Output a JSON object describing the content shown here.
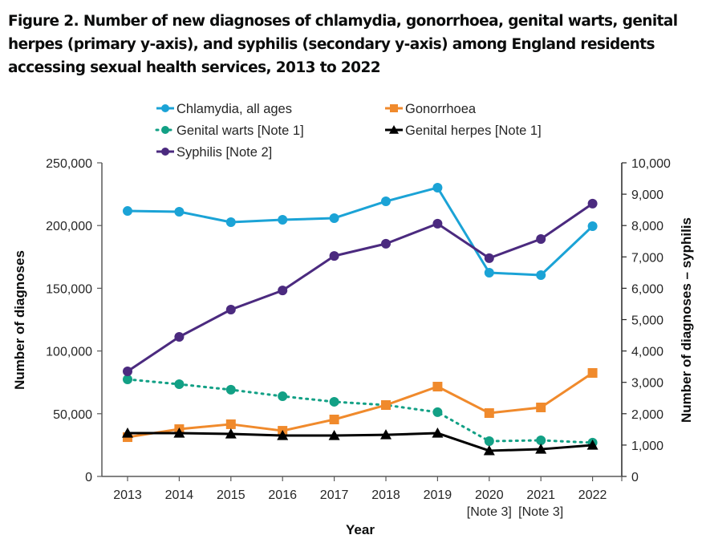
{
  "title": "Figure 2. Number of new diagnoses of chlamydia, gonorrhoea, genital warts, genital herpes (primary y-axis), and syphilis (secondary y-axis) among England residents accessing sexual health services, 2013 to 2022",
  "chart_data": {
    "type": "line",
    "title": "Figure 2. Number of new diagnoses of chlamydia, gonorrhoea, genital warts, genital herpes (primary y-axis), and syphilis (secondary y-axis) among England residents accessing sexual health services, 2013 to 2022",
    "xlabel": "Year",
    "ylabel": "Number of diagnoses",
    "y2label": "Number of diagnoses – syphilis",
    "categories": [
      "2013",
      "2014",
      "2015",
      "2016",
      "2017",
      "2018",
      "2019",
      "2020",
      "2021",
      "2022"
    ],
    "category_notes": [
      "",
      "",
      "",
      "",
      "",
      "",
      "",
      "[Note 3]",
      "[Note 3]",
      ""
    ],
    "ylim": [
      0,
      250000
    ],
    "y2lim": [
      0,
      10000
    ],
    "yticks": [
      "0",
      "50,000",
      "100,000",
      "150,000",
      "200,000",
      "250,000"
    ],
    "y2ticks": [
      "0",
      "1,000",
      "2,000",
      "3,000",
      "4,000",
      "5,000",
      "6,000",
      "7,000",
      "8,000",
      "9,000",
      "10,000"
    ],
    "ytick_values": [
      0,
      50000,
      100000,
      150000,
      200000,
      250000
    ],
    "y2tick_values": [
      0,
      1000,
      2000,
      3000,
      4000,
      5000,
      6000,
      7000,
      8000,
      9000,
      10000
    ],
    "grid": false,
    "legend_position": "top",
    "series": [
      {
        "name": "Chlamydia, all ages",
        "axis": "primary",
        "color": "#1ba3d6",
        "marker": "circle",
        "dash": "solid",
        "values": [
          211600,
          211000,
          202700,
          204600,
          205900,
          219300,
          230200,
          162400,
          160500,
          199500
        ]
      },
      {
        "name": "Gonorrhoea",
        "axis": "primary",
        "color": "#f08a2c",
        "marker": "square",
        "dash": "solid",
        "values": [
          31300,
          37700,
          41600,
          36400,
          45400,
          56900,
          71600,
          50500,
          55000,
          82500
        ]
      },
      {
        "name": "Genital warts [Note 1]",
        "axis": "primary",
        "color": "#12a085",
        "marker": "circle",
        "dash": "dotted",
        "values": [
          77400,
          73500,
          69100,
          63900,
          59500,
          56900,
          51200,
          28100,
          28800,
          26900
        ]
      },
      {
        "name": "Genital herpes [Note 1]",
        "axis": "primary",
        "color": "#000000",
        "marker": "triangle",
        "dash": "solid",
        "values": [
          34500,
          34500,
          33900,
          32600,
          32600,
          33200,
          34500,
          20500,
          21700,
          24900
        ]
      },
      {
        "name": "Syphilis [Note 2]",
        "axis": "secondary",
        "color": "#4b2a7f",
        "marker": "circle",
        "dash": "solid",
        "values": [
          3350,
          4450,
          5320,
          5930,
          7030,
          7420,
          8060,
          6960,
          7570,
          8700
        ]
      }
    ]
  }
}
